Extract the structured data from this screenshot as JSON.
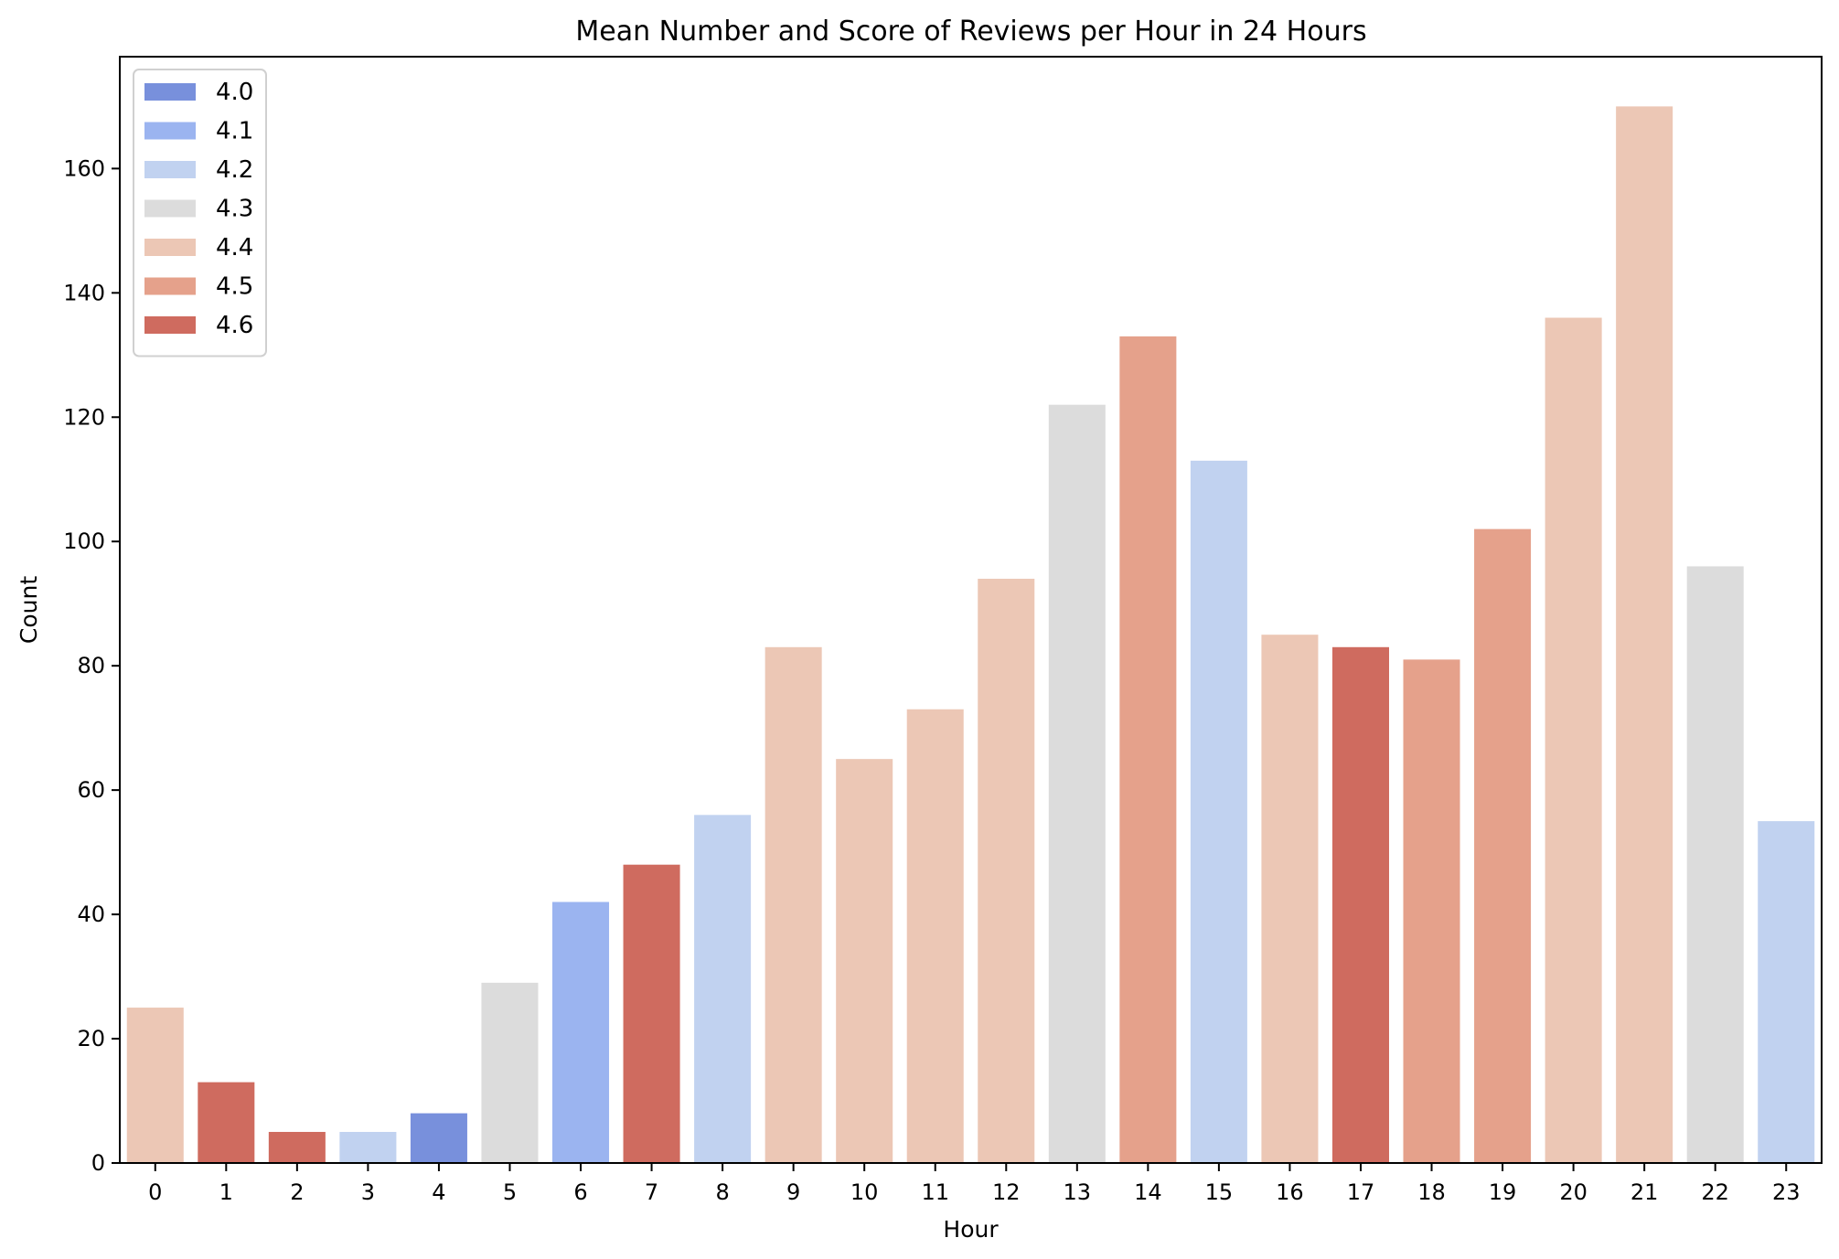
{
  "chart_data": {
    "type": "bar",
    "title": "Mean Number and Score of Reviews per Hour in 24 Hours",
    "xlabel": "Hour",
    "ylabel": "Count",
    "ylim": [
      0,
      178
    ],
    "yticks": [
      0,
      20,
      40,
      60,
      80,
      100,
      120,
      140,
      160
    ],
    "categories": [
      "0",
      "1",
      "2",
      "3",
      "4",
      "5",
      "6",
      "7",
      "8",
      "9",
      "10",
      "11",
      "12",
      "13",
      "14",
      "15",
      "16",
      "17",
      "18",
      "19",
      "20",
      "21",
      "22",
      "23"
    ],
    "values": [
      25,
      13,
      5,
      5,
      8,
      29,
      42,
      48,
      56,
      83,
      65,
      73,
      94,
      122,
      133,
      113,
      85,
      83,
      81,
      102,
      136,
      170,
      96,
      55
    ],
    "scores": [
      "4.4",
      "4.6",
      "4.6",
      "4.2",
      "4.0",
      "4.3",
      "4.1",
      "4.6",
      "4.2",
      "4.4",
      "4.4",
      "4.4",
      "4.4",
      "4.3",
      "4.5",
      "4.2",
      "4.4",
      "4.6",
      "4.5",
      "4.5",
      "4.4",
      "4.4",
      "4.3",
      "4.2"
    ],
    "legend": {
      "placement": "top-left",
      "entries": [
        {
          "label": "4.0",
          "color": "#7890dc"
        },
        {
          "label": "4.1",
          "color": "#9bb4f0"
        },
        {
          "label": "4.2",
          "color": "#c1d2f0"
        },
        {
          "label": "4.3",
          "color": "#dcdcdc"
        },
        {
          "label": "4.4",
          "color": "#ecc7b5"
        },
        {
          "label": "4.5",
          "color": "#e5a18b"
        },
        {
          "label": "4.6",
          "color": "#cf6b5f"
        }
      ]
    },
    "grid": false
  }
}
